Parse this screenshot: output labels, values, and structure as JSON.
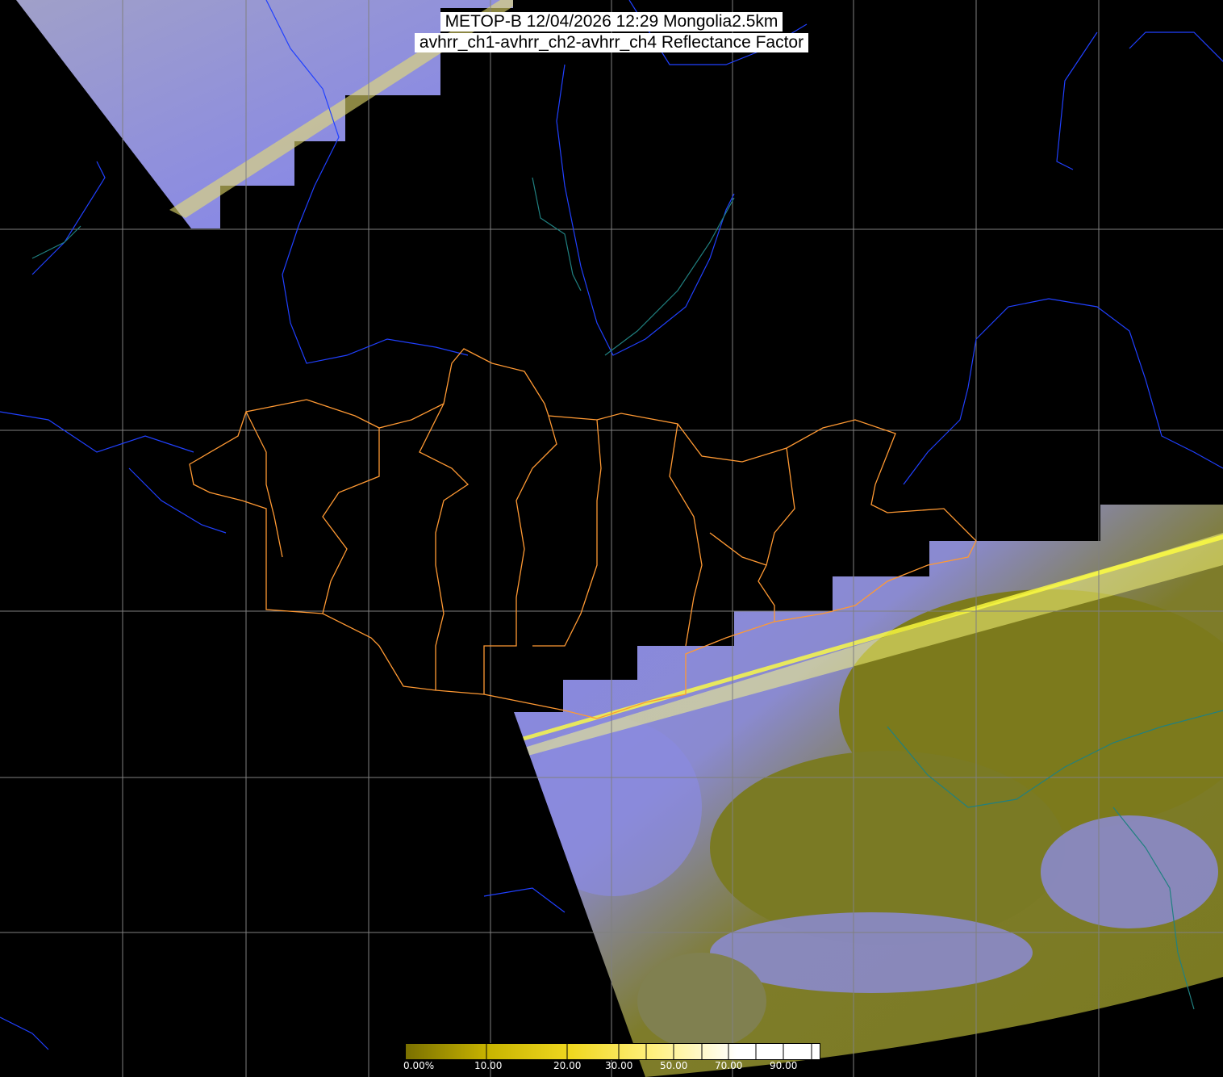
{
  "header": {
    "title_line1": "METOP-B 12/04/2026 12:29 Mongolia2.5km",
    "title_line2": "avhrr_ch1-avhrr_ch2-avhrr_ch4 Reflectance Factor"
  },
  "colorbar": {
    "labels": [
      "0.00%",
      "10.00",
      "20.00",
      "30.00",
      "50.00",
      "70.00",
      "90.00"
    ],
    "label_values": [
      0,
      10,
      20,
      30,
      50,
      70,
      90
    ],
    "range": [
      0,
      100
    ],
    "colors": [
      "#7a7000",
      "#c8b400",
      "#f0d820",
      "#fff080",
      "#ffffff"
    ]
  },
  "colors": {
    "background": "#000000",
    "cloud": "#8a8af0",
    "land": "#7c7a1c",
    "province_border": "#ff9933",
    "coastline": "#2040ff",
    "river": "#208080",
    "grid": "#808080"
  }
}
